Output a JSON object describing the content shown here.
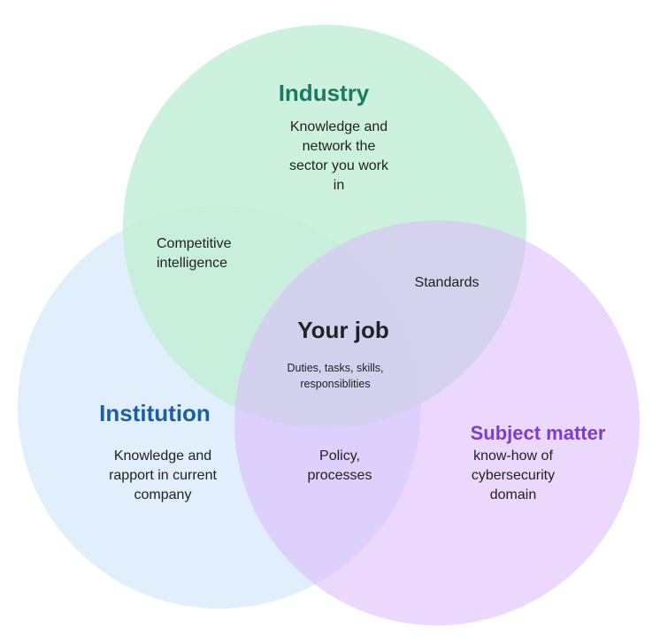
{
  "colors": {
    "industry_title": "#1b7a62",
    "institution_title": "#1d5fa3",
    "subject_title": "#7a3fc9",
    "text": "#222222",
    "industry_fill": "#c8f0da",
    "institution_fill": "#daeafc",
    "subject_fill": "#e5c8fb"
  },
  "industry": {
    "title": "Industry",
    "desc": [
      "Knowledge and",
      "network the",
      "sector you work",
      "in"
    ]
  },
  "institution": {
    "title": "Institution",
    "desc": [
      "Knowledge and",
      "rapport in current",
      "company"
    ]
  },
  "subject": {
    "title": "Subject matter",
    "desc": [
      "know-how of",
      "cybersecurity",
      "domain"
    ]
  },
  "overlaps": {
    "industry_institution": [
      "Competitive",
      "intelligence"
    ],
    "industry_subject": "Standards",
    "institution_subject": [
      "Policy,",
      "processes"
    ]
  },
  "center": {
    "title": "Your job",
    "desc": [
      "Duties, tasks, skills,",
      "responsiblities"
    ]
  }
}
